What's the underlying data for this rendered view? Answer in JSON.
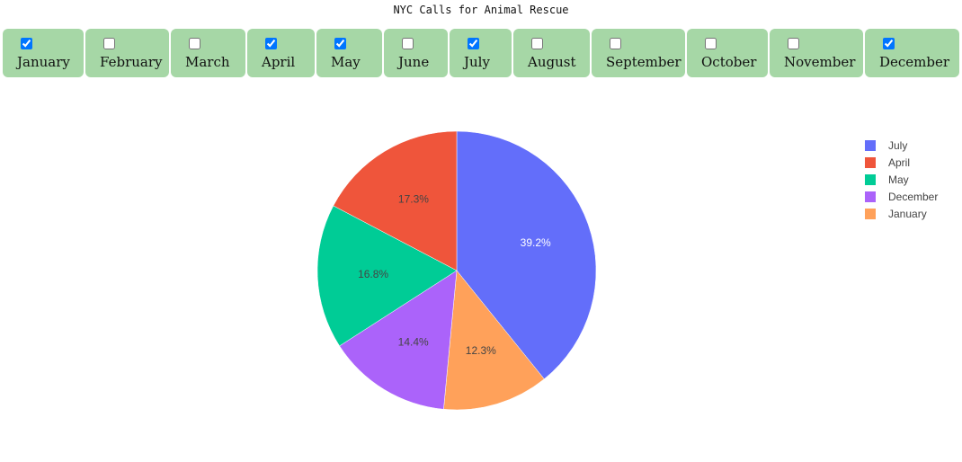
{
  "title": "NYC Calls for Animal Rescue",
  "months": [
    {
      "label": "January",
      "checked": true
    },
    {
      "label": "February",
      "checked": false
    },
    {
      "label": "March",
      "checked": false
    },
    {
      "label": "April",
      "checked": true
    },
    {
      "label": "May",
      "checked": true
    },
    {
      "label": "June",
      "checked": false
    },
    {
      "label": "July",
      "checked": true
    },
    {
      "label": "August",
      "checked": false
    },
    {
      "label": "September",
      "checked": false
    },
    {
      "label": "October",
      "checked": false
    },
    {
      "label": "November",
      "checked": false
    },
    {
      "label": "December",
      "checked": true
    }
  ],
  "chart_data": {
    "type": "pie",
    "categories": [
      "July",
      "January",
      "December",
      "May",
      "April"
    ],
    "values": [
      39.2,
      12.3,
      14.4,
      16.8,
      17.3
    ],
    "labels": [
      "39.2%",
      "12.3%",
      "14.4%",
      "16.8%",
      "17.3%"
    ],
    "colors": [
      "#636efa",
      "#ffa15a",
      "#ab63fa",
      "#00cc96",
      "#ef553b"
    ],
    "label_colors": [
      "#ffffff",
      "#444444",
      "#444444",
      "#444444",
      "#444444"
    ],
    "legend": {
      "position": "right",
      "items": [
        {
          "name": "July",
          "color": "#636efa"
        },
        {
          "name": "April",
          "color": "#ef553b"
        },
        {
          "name": "May",
          "color": "#00cc96"
        },
        {
          "name": "December",
          "color": "#ab63fa"
        },
        {
          "name": "January",
          "color": "#ffa15a"
        }
      ]
    }
  }
}
